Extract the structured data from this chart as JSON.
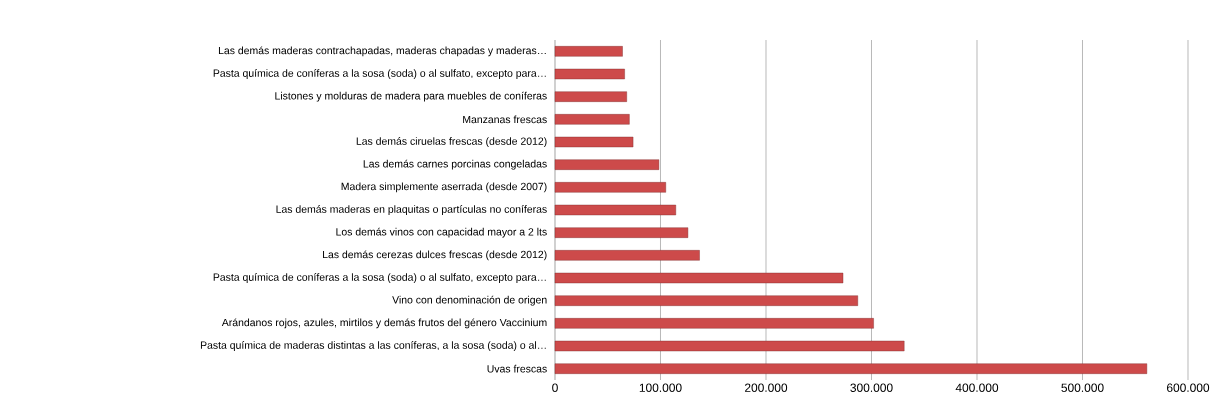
{
  "chart_data": {
    "type": "bar",
    "orientation": "horizontal",
    "categories": [
      "Las demás maderas contrachapadas, maderas chapadas y maderas…",
      "Pasta química de coníferas a la sosa (soda) o al sulfato, excepto para…",
      "Listones y molduras de madera para muebles de coníferas",
      "Manzanas frescas",
      "Las demás ciruelas frescas (desde 2012)",
      "Las demás carnes porcinas congeladas",
      "Madera simplemente aserrada (desde 2007)",
      "Las demás maderas en plaquitas o partículas no coníferas",
      "Los demás vinos con capacidad mayor a 2 lts",
      "Las demás cerezas dulces frescas (desde 2012)",
      "Pasta química de coníferas a la sosa (soda) o al sulfato, excepto para…",
      "Vino con denominación de origen",
      "Arándanos rojos, azules, mirtilos y demás frutos del género Vaccinium",
      "Pasta química de maderas distintas a las coníferas, a la sosa (soda) o al…",
      "Uvas frescas"
    ],
    "values": [
      64000,
      66000,
      68000,
      70500,
      74000,
      98500,
      105000,
      114500,
      126000,
      137000,
      273000,
      287000,
      302000,
      331000,
      561000
    ],
    "color": "#cd4a4a",
    "xlim": [
      0,
      600000
    ],
    "xticks": [
      {
        "value": 0,
        "label": "0"
      },
      {
        "value": 100000,
        "label": "100.000"
      },
      {
        "value": 200000,
        "label": "200.000"
      },
      {
        "value": 300000,
        "label": "300.000"
      },
      {
        "value": 400000,
        "label": "400.000"
      },
      {
        "value": 500000,
        "label": "500.000"
      },
      {
        "value": 600000,
        "label": "600.000"
      }
    ],
    "grid": "x"
  }
}
